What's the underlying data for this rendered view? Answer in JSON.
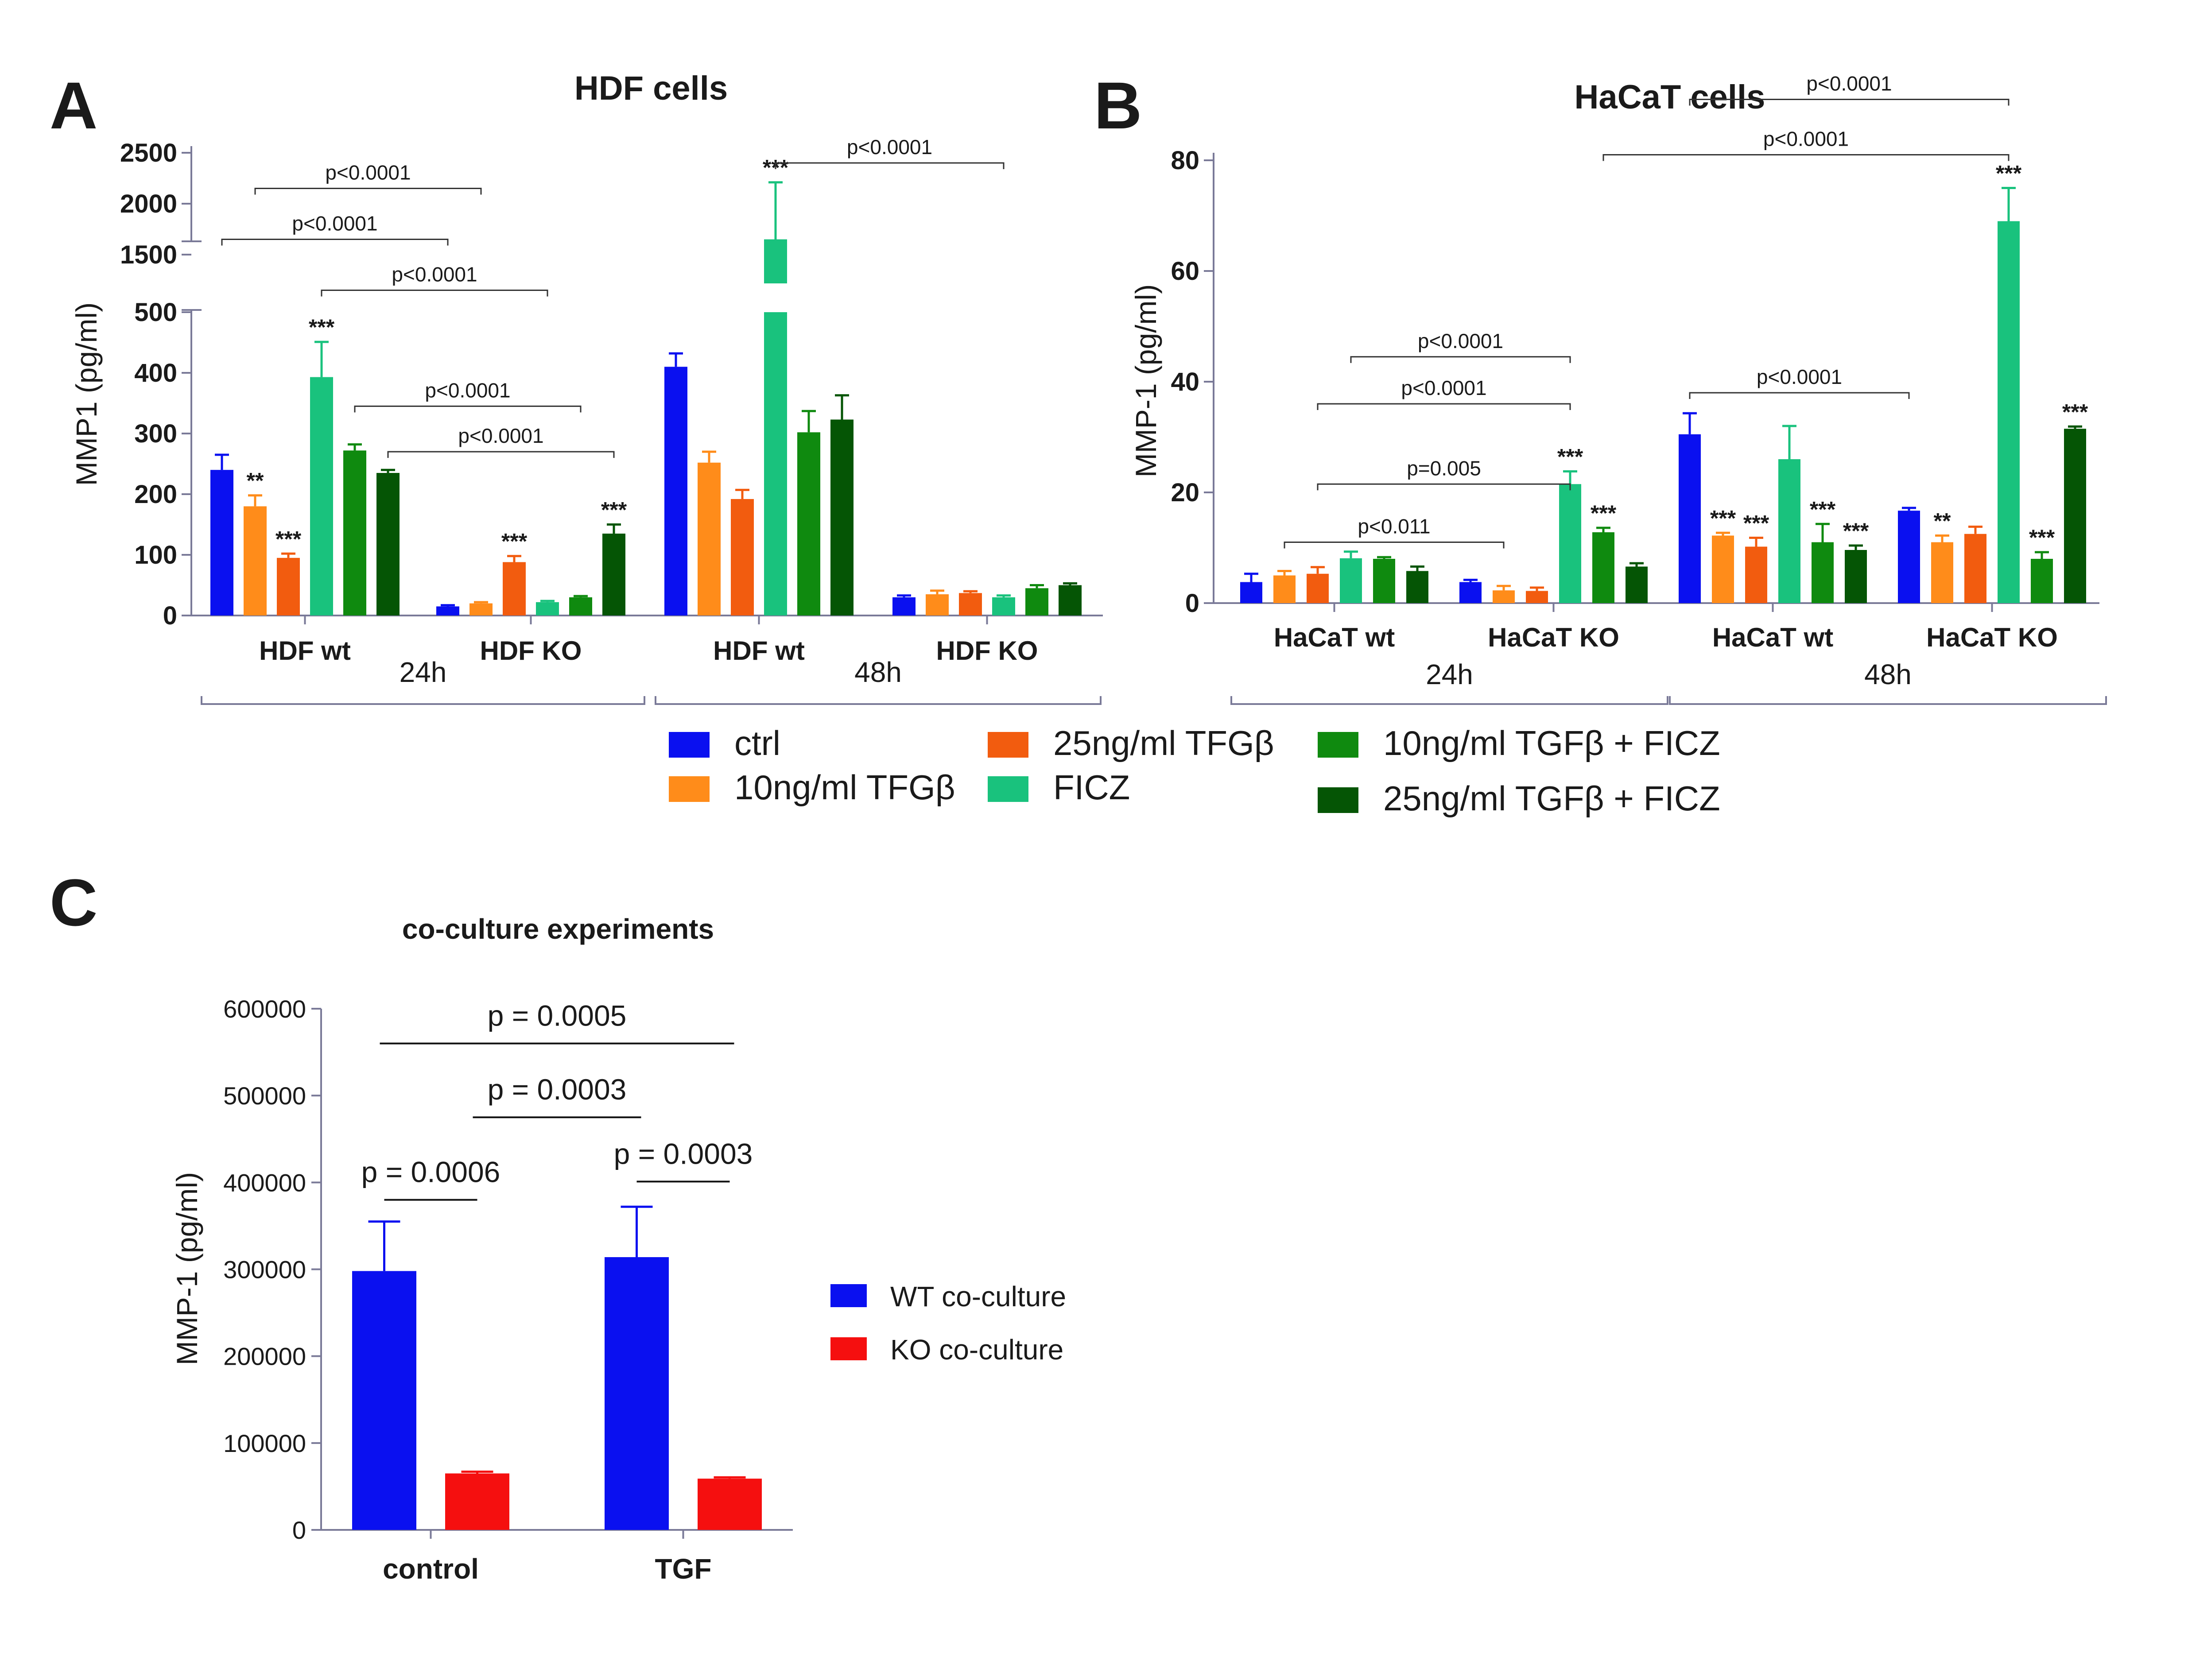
{
  "figure": {
    "legend": [
      {
        "label": "ctrl",
        "color": "#0a10f0"
      },
      {
        "label": "10ng/ml TFGβ",
        "color": "#ff8c1a"
      },
      {
        "label": "25ng/ml TFGβ",
        "color": "#f25c0f"
      },
      {
        "label": "FICZ",
        "color": "#19c27d"
      },
      {
        "label": "10ng/ml TGFβ + FICZ",
        "color": "#0f8a0f"
      },
      {
        "label": "25ng/ml TGFβ + FICZ",
        "color": "#055505"
      }
    ]
  },
  "chart_data": [
    {
      "panel": "A",
      "type": "bar",
      "title": "HDF cells",
      "ylabel": "MMP1 (pg/ml)",
      "y_axis_break": {
        "lower": [
          0,
          500
        ],
        "upper": [
          1500,
          2500
        ]
      },
      "ytick_labels": [
        "0",
        "100",
        "200",
        "300",
        "400",
        "500",
        "1500",
        "2000",
        "2500"
      ],
      "categories": [
        "HDF wt",
        "HDF KO",
        "HDF wt",
        "HDF KO"
      ],
      "time_groups": [
        {
          "label": "24h",
          "categories": [
            0,
            1
          ]
        },
        {
          "label": "48h",
          "categories": [
            2,
            3
          ]
        }
      ],
      "series": [
        {
          "name": "ctrl",
          "values": [
            240,
            15,
            410,
            30
          ],
          "errors": [
            25,
            2,
            22,
            3
          ],
          "stars": [
            "",
            "",
            "",
            ""
          ]
        },
        {
          "name": "10ng/ml TFGβ",
          "values": [
            180,
            20,
            252,
            35
          ],
          "errors": [
            18,
            2,
            18,
            6
          ],
          "stars": [
            "**",
            "",
            "",
            ""
          ]
        },
        {
          "name": "25ng/ml TFGβ",
          "values": [
            95,
            88,
            192,
            37
          ],
          "errors": [
            7,
            10,
            15,
            3
          ],
          "stars": [
            "***",
            "***",
            "",
            ""
          ]
        },
        {
          "name": "FICZ",
          "values": [
            393,
            22,
            1650,
            30
          ],
          "errors": [
            58,
            2,
            560,
            3
          ],
          "stars": [
            "***",
            "",
            "***",
            ""
          ]
        },
        {
          "name": "10ng/ml TGFβ + FICZ",
          "values": [
            272,
            30,
            302,
            45
          ],
          "errors": [
            10,
            2,
            35,
            5
          ],
          "stars": [
            "",
            "",
            "",
            ""
          ]
        },
        {
          "name": "25ng/ml TGFβ + FICZ",
          "values": [
            235,
            135,
            323,
            50
          ],
          "errors": [
            5,
            15,
            40,
            3
          ],
          "stars": [
            "",
            "***",
            "",
            ""
          ]
        }
      ],
      "annotations": [
        {
          "text": "p<0.0001",
          "from": [
            0,
            1
          ],
          "to": [
            1,
            1
          ],
          "level": 2150
        },
        {
          "text": "p<0.0001",
          "from": [
            0,
            0
          ],
          "to": [
            1,
            0
          ],
          "level": 1650
        },
        {
          "text": "p<0.0001",
          "from": [
            0,
            3
          ],
          "to": [
            1,
            3
          ],
          "level": 1150
        },
        {
          "text": "p<0.0001",
          "from": [
            0,
            4
          ],
          "to": [
            1,
            4
          ],
          "level": 345
        },
        {
          "text": "p<0.0001",
          "from": [
            0,
            5
          ],
          "to": [
            1,
            5
          ],
          "level": 270
        },
        {
          "text": "p<0.0001",
          "from": [
            2,
            3
          ],
          "to": [
            3,
            3
          ],
          "level": 2400
        }
      ]
    },
    {
      "panel": "B",
      "type": "bar",
      "title": "HaCaT cells",
      "ylabel": "MMP-1 (pg/ml)",
      "ylim": [
        0,
        80
      ],
      "yticks": [
        0,
        20,
        40,
        60,
        80
      ],
      "categories": [
        "HaCaT wt",
        "HaCaT KO",
        "HaCaT wt",
        "HaCaT KO"
      ],
      "time_groups": [
        {
          "label": "24h",
          "categories": [
            0,
            1
          ]
        },
        {
          "label": "48h",
          "categories": [
            2,
            3
          ]
        }
      ],
      "series": [
        {
          "name": "ctrl",
          "values": [
            3.8,
            3.8,
            30.5,
            16.7
          ],
          "errors": [
            1.5,
            0.4,
            3.8,
            0.5
          ],
          "stars": [
            "",
            "",
            "",
            ""
          ]
        },
        {
          "name": "10ng/ml TFGβ",
          "values": [
            5,
            2.3,
            12.2,
            11
          ],
          "errors": [
            0.8,
            0.8,
            0.5,
            1.2
          ],
          "stars": [
            "",
            "",
            "***",
            "**"
          ]
        },
        {
          "name": "25ng/ml TFGβ",
          "values": [
            5.3,
            2.2,
            10.2,
            12.5
          ],
          "errors": [
            1.2,
            0.6,
            1.6,
            1.3
          ],
          "stars": [
            "",
            "",
            "***",
            ""
          ]
        },
        {
          "name": "FICZ",
          "values": [
            8.1,
            21.5,
            26,
            69
          ],
          "errors": [
            1.2,
            2.3,
            6,
            6
          ],
          "stars": [
            "",
            "***",
            "",
            "***"
          ]
        },
        {
          "name": "10ng/ml TGFβ + FICZ",
          "values": [
            8,
            12.8,
            11,
            8
          ],
          "errors": [
            0.3,
            0.8,
            3.3,
            1.2
          ],
          "stars": [
            "",
            "***",
            "***",
            "***"
          ]
        },
        {
          "name": "25ng/ml TGFβ + FICZ",
          "values": [
            5.8,
            6.6,
            9.6,
            31.5
          ],
          "errors": [
            0.8,
            0.6,
            0.8,
            0.4
          ],
          "stars": [
            "",
            "",
            "***",
            "***"
          ]
        }
      ],
      "annotations": [
        {
          "text": "p<0.0001",
          "from": [
            2,
            0
          ],
          "to": [
            3,
            3
          ],
          "level": 91
        },
        {
          "text": "p<0.0001",
          "from": [
            1,
            4
          ],
          "to": [
            3,
            3
          ],
          "level": 81
        },
        {
          "text": "p<0.0001",
          "from": [
            0,
            3
          ],
          "to": [
            1,
            3
          ],
          "level": 44.5
        },
        {
          "text": "p<0.0001",
          "from": [
            0,
            2
          ],
          "to": [
            1,
            3
          ],
          "level": 36
        },
        {
          "text": "p=0.005",
          "from": [
            0,
            2
          ],
          "to": [
            1,
            3
          ],
          "level": 21.5
        },
        {
          "text": "p<0.011",
          "from": [
            0,
            1
          ],
          "to": [
            1,
            1
          ],
          "level": 11
        },
        {
          "text": "p<0.0001",
          "from": [
            2,
            0
          ],
          "to": [
            3,
            0
          ],
          "level": 38
        }
      ]
    },
    {
      "panel": "C",
      "type": "bar",
      "title": "co-culture experiments",
      "ylabel": "MMP-1 (pg/ml)",
      "ylim": [
        0,
        600000
      ],
      "yticks": [
        0,
        100000,
        200000,
        300000,
        400000,
        500000,
        600000
      ],
      "categories": [
        "control",
        "TGF"
      ],
      "series": [
        {
          "name": "WT co-culture",
          "values": [
            298000,
            314000
          ],
          "errors": [
            57000,
            58000
          ],
          "color": "#0a10f0"
        },
        {
          "name": "KO co-culture",
          "values": [
            65000,
            59000
          ],
          "errors": [
            2000,
            1500
          ],
          "color": "#f50f0f"
        }
      ],
      "annotations": [
        {
          "text": "p = 0.0005",
          "from": [
            0,
            0
          ],
          "to": [
            1,
            1
          ],
          "level": 560000
        },
        {
          "text": "p = 0.0003",
          "from": [
            0,
            1
          ],
          "to": [
            1,
            0
          ],
          "level": 475000
        },
        {
          "text": "p = 0.0006",
          "from": [
            0,
            0
          ],
          "to": [
            0,
            1
          ],
          "level": 380000
        },
        {
          "text": "p = 0.0003",
          "from": [
            1,
            0
          ],
          "to": [
            1,
            1
          ],
          "level": 401000
        }
      ]
    }
  ]
}
